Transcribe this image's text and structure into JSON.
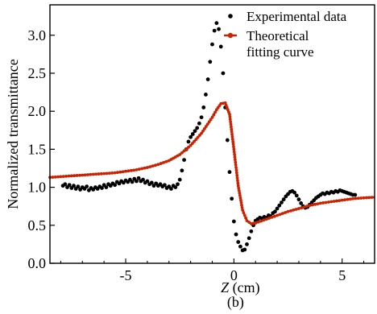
{
  "chart_data": {
    "type": "scatter",
    "panel_label": "(b)",
    "xlabel_var": "Z",
    "xlabel_unit": " (cm)",
    "ylabel": "Normalized transmittance",
    "xlim": [
      -8.5,
      6.5
    ],
    "ylim": [
      0.0,
      3.4
    ],
    "xticks": [
      -5,
      0,
      5
    ],
    "xtick_labels": [
      "-5",
      "0",
      "5"
    ],
    "yticks": [
      0.0,
      0.5,
      1.0,
      1.5,
      2.0,
      2.5,
      3.0
    ],
    "ytick_labels": [
      "0.0",
      "0.5",
      "1.0",
      "1.5",
      "2.0",
      "2.5",
      "3.0"
    ],
    "legend_position": "top-right",
    "series": [
      {
        "name": "Experimental data",
        "kind": "points",
        "color": "#000000",
        "points": [
          [
            -7.9,
            1.02
          ],
          [
            -7.8,
            1.04
          ],
          [
            -7.7,
            1.0
          ],
          [
            -7.6,
            1.03
          ],
          [
            -7.5,
            0.99
          ],
          [
            -7.4,
            1.02
          ],
          [
            -7.3,
            0.98
          ],
          [
            -7.2,
            1.01
          ],
          [
            -7.1,
            0.97
          ],
          [
            -7.0,
            1.0
          ],
          [
            -6.9,
            0.98
          ],
          [
            -6.8,
            1.01
          ],
          [
            -6.7,
            0.96
          ],
          [
            -6.6,
            0.99
          ],
          [
            -6.5,
            0.97
          ],
          [
            -6.4,
            1.0
          ],
          [
            -6.3,
            0.98
          ],
          [
            -6.2,
            1.01
          ],
          [
            -6.1,
            0.99
          ],
          [
            -6.0,
            1.03
          ],
          [
            -5.9,
            1.0
          ],
          [
            -5.8,
            1.04
          ],
          [
            -5.7,
            1.02
          ],
          [
            -5.6,
            1.05
          ],
          [
            -5.5,
            1.03
          ],
          [
            -5.4,
            1.07
          ],
          [
            -5.3,
            1.05
          ],
          [
            -5.2,
            1.08
          ],
          [
            -5.1,
            1.06
          ],
          [
            -5.0,
            1.09
          ],
          [
            -4.9,
            1.07
          ],
          [
            -4.8,
            1.1
          ],
          [
            -4.7,
            1.07
          ],
          [
            -4.6,
            1.11
          ],
          [
            -4.5,
            1.08
          ],
          [
            -4.4,
            1.12
          ],
          [
            -4.3,
            1.08
          ],
          [
            -4.2,
            1.1
          ],
          [
            -4.1,
            1.06
          ],
          [
            -4.0,
            1.08
          ],
          [
            -3.9,
            1.04
          ],
          [
            -3.8,
            1.06
          ],
          [
            -3.7,
            1.02
          ],
          [
            -3.6,
            1.05
          ],
          [
            -3.5,
            1.02
          ],
          [
            -3.4,
            1.04
          ],
          [
            -3.3,
            1.01
          ],
          [
            -3.2,
            1.03
          ],
          [
            -3.1,
            0.99
          ],
          [
            -3.0,
            1.01
          ],
          [
            -2.9,
            0.98
          ],
          [
            -2.8,
            1.02
          ],
          [
            -2.7,
            1.0
          ],
          [
            -2.6,
            1.04
          ],
          [
            -2.5,
            1.1
          ],
          [
            -2.4,
            1.22
          ],
          [
            -2.3,
            1.36
          ],
          [
            -2.2,
            1.5
          ],
          [
            -2.1,
            1.6
          ],
          [
            -2.0,
            1.66
          ],
          [
            -1.9,
            1.7
          ],
          [
            -1.8,
            1.74
          ],
          [
            -1.7,
            1.78
          ],
          [
            -1.6,
            1.84
          ],
          [
            -1.5,
            1.92
          ],
          [
            -1.4,
            2.05
          ],
          [
            -1.3,
            2.22
          ],
          [
            -1.2,
            2.42
          ],
          [
            -1.1,
            2.65
          ],
          [
            -1.0,
            2.88
          ],
          [
            -0.9,
            3.06
          ],
          [
            -0.8,
            3.16
          ],
          [
            -0.7,
            3.08
          ],
          [
            -0.6,
            2.85
          ],
          [
            -0.5,
            2.5
          ],
          [
            -0.4,
            2.05
          ],
          [
            -0.3,
            1.62
          ],
          [
            -0.2,
            1.2
          ],
          [
            -0.1,
            0.85
          ],
          [
            0.0,
            0.55
          ],
          [
            0.1,
            0.38
          ],
          [
            0.2,
            0.28
          ],
          [
            0.3,
            0.22
          ],
          [
            0.4,
            0.17
          ],
          [
            0.5,
            0.18
          ],
          [
            0.6,
            0.25
          ],
          [
            0.7,
            0.33
          ],
          [
            0.8,
            0.42
          ],
          [
            0.9,
            0.5
          ],
          [
            1.0,
            0.56
          ],
          [
            1.1,
            0.58
          ],
          [
            1.2,
            0.6
          ],
          [
            1.3,
            0.59
          ],
          [
            1.4,
            0.61
          ],
          [
            1.5,
            0.6
          ],
          [
            1.6,
            0.63
          ],
          [
            1.7,
            0.62
          ],
          [
            1.8,
            0.66
          ],
          [
            1.9,
            0.68
          ],
          [
            2.0,
            0.72
          ],
          [
            2.1,
            0.76
          ],
          [
            2.2,
            0.8
          ],
          [
            2.3,
            0.84
          ],
          [
            2.4,
            0.88
          ],
          [
            2.5,
            0.91
          ],
          [
            2.6,
            0.94
          ],
          [
            2.7,
            0.95
          ],
          [
            2.8,
            0.93
          ],
          [
            2.9,
            0.89
          ],
          [
            3.0,
            0.84
          ],
          [
            3.1,
            0.79
          ],
          [
            3.2,
            0.75
          ],
          [
            3.3,
            0.73
          ],
          [
            3.4,
            0.74
          ],
          [
            3.5,
            0.77
          ],
          [
            3.6,
            0.8
          ],
          [
            3.7,
            0.83
          ],
          [
            3.8,
            0.86
          ],
          [
            3.9,
            0.88
          ],
          [
            4.0,
            0.9
          ],
          [
            4.1,
            0.92
          ],
          [
            4.2,
            0.91
          ],
          [
            4.3,
            0.93
          ],
          [
            4.4,
            0.92
          ],
          [
            4.5,
            0.94
          ],
          [
            4.6,
            0.93
          ],
          [
            4.7,
            0.95
          ],
          [
            4.8,
            0.94
          ],
          [
            4.9,
            0.96
          ],
          [
            5.0,
            0.95
          ],
          [
            5.1,
            0.94
          ],
          [
            5.2,
            0.93
          ],
          [
            5.3,
            0.92
          ],
          [
            5.4,
            0.91
          ],
          [
            5.5,
            0.9
          ],
          [
            5.6,
            0.9
          ]
        ]
      },
      {
        "name": "Theoretical\nfitting curve",
        "kind": "line-with-markers",
        "color": "#cc2200",
        "points": [
          [
            -8.5,
            1.13
          ],
          [
            -8.0,
            1.14
          ],
          [
            -7.5,
            1.15
          ],
          [
            -7.0,
            1.16
          ],
          [
            -6.5,
            1.17
          ],
          [
            -6.0,
            1.18
          ],
          [
            -5.5,
            1.19
          ],
          [
            -5.0,
            1.21
          ],
          [
            -4.5,
            1.23
          ],
          [
            -4.0,
            1.26
          ],
          [
            -3.5,
            1.3
          ],
          [
            -3.0,
            1.35
          ],
          [
            -2.5,
            1.43
          ],
          [
            -2.0,
            1.55
          ],
          [
            -1.5,
            1.71
          ],
          [
            -1.0,
            1.92
          ],
          [
            -0.8,
            2.02
          ],
          [
            -0.6,
            2.1
          ],
          [
            -0.4,
            2.11
          ],
          [
            -0.2,
            1.96
          ],
          [
            0.0,
            1.5
          ],
          [
            0.2,
            1.02
          ],
          [
            0.4,
            0.7
          ],
          [
            0.6,
            0.56
          ],
          [
            0.8,
            0.52
          ],
          [
            1.0,
            0.53
          ],
          [
            1.5,
            0.58
          ],
          [
            2.0,
            0.63
          ],
          [
            2.5,
            0.68
          ],
          [
            3.0,
            0.72
          ],
          [
            3.5,
            0.76
          ],
          [
            4.0,
            0.79
          ],
          [
            4.5,
            0.81
          ],
          [
            5.0,
            0.83
          ],
          [
            5.5,
            0.85
          ],
          [
            6.0,
            0.86
          ],
          [
            6.5,
            0.87
          ]
        ]
      }
    ]
  }
}
